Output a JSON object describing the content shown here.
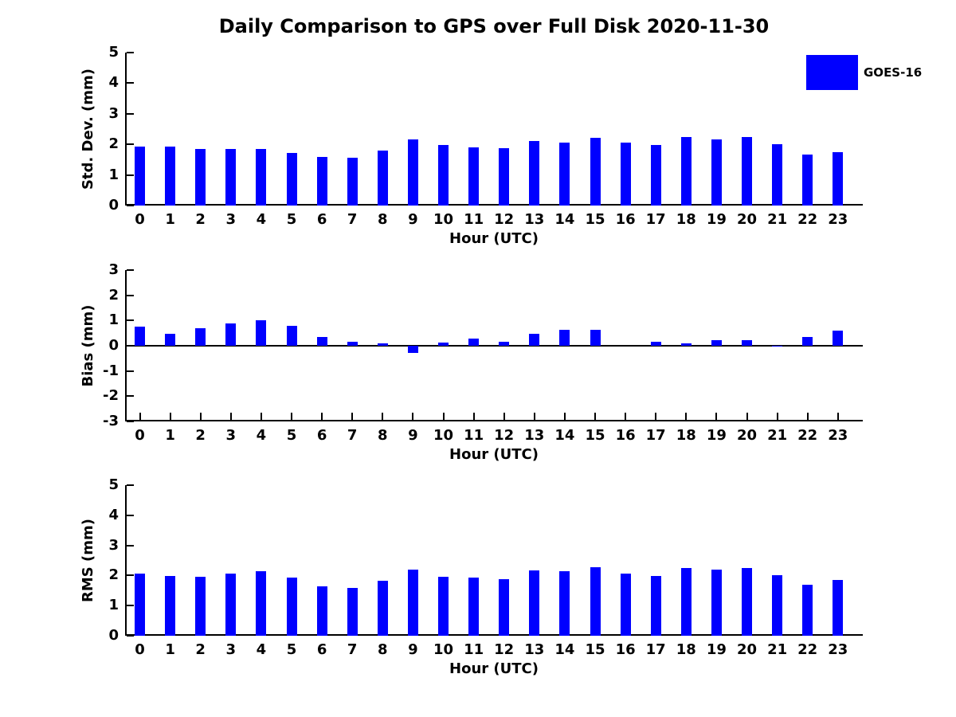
{
  "title": "Daily Comparison to GPS over Full Disk 2020-11-30",
  "legend": {
    "label": "GOES-16",
    "swatch_color": "#0000FF"
  },
  "colors": {
    "bar": "#0000FF",
    "axis": "#000000",
    "text": "#000000",
    "background": "#FFFFFF"
  },
  "chart_data": [
    {
      "id": "stddev",
      "type": "bar",
      "ylabel": "Std. Dev. (mm)",
      "xlabel": "Hour (UTC)",
      "ylim": [
        0,
        5
      ],
      "yticks": [
        0,
        1,
        2,
        3,
        4,
        5
      ],
      "grid": false,
      "legend_position": "top-right",
      "categories": [
        "0",
        "1",
        "2",
        "3",
        "4",
        "5",
        "6",
        "7",
        "8",
        "9",
        "10",
        "11",
        "12",
        "13",
        "14",
        "15",
        "16",
        "17",
        "18",
        "19",
        "20",
        "21",
        "22",
        "23"
      ],
      "series": [
        {
          "name": "GOES-16",
          "values": [
            1.93,
            1.93,
            1.84,
            1.86,
            1.86,
            1.73,
            1.58,
            1.55,
            1.8,
            2.17,
            1.97,
            1.91,
            1.88,
            2.12,
            2.07,
            2.22,
            2.06,
            1.98,
            2.24,
            2.17,
            2.24,
            2.01,
            1.66,
            1.75
          ]
        }
      ]
    },
    {
      "id": "bias",
      "type": "bar",
      "ylabel": "Bias (mm)",
      "xlabel": "Hour (UTC)",
      "ylim": [
        -3,
        3
      ],
      "yticks": [
        -3,
        -2,
        -1,
        0,
        1,
        2,
        3
      ],
      "grid": false,
      "legend_position": "none",
      "categories": [
        "0",
        "1",
        "2",
        "3",
        "4",
        "5",
        "6",
        "7",
        "8",
        "9",
        "10",
        "11",
        "12",
        "13",
        "14",
        "15",
        "16",
        "17",
        "18",
        "19",
        "20",
        "21",
        "22",
        "23"
      ],
      "series": [
        {
          "name": "GOES-16",
          "values": [
            0.76,
            0.48,
            0.71,
            0.9,
            1.01,
            0.8,
            0.34,
            0.15,
            0.08,
            -0.27,
            0.14,
            0.3,
            0.17,
            0.46,
            0.63,
            0.62,
            0.0,
            0.17,
            0.11,
            0.23,
            0.22,
            -0.04,
            0.36,
            0.6
          ]
        }
      ]
    },
    {
      "id": "rms",
      "type": "bar",
      "ylabel": "RMS (mm)",
      "xlabel": "Hour (UTC)",
      "ylim": [
        0,
        5
      ],
      "yticks": [
        0,
        1,
        2,
        3,
        4,
        5
      ],
      "grid": false,
      "legend_position": "none",
      "categories": [
        "0",
        "1",
        "2",
        "3",
        "4",
        "5",
        "6",
        "7",
        "8",
        "9",
        "10",
        "11",
        "12",
        "13",
        "14",
        "15",
        "16",
        "17",
        "18",
        "19",
        "20",
        "21",
        "22",
        "23"
      ],
      "series": [
        {
          "name": "GOES-16",
          "values": [
            2.07,
            1.99,
            1.97,
            2.07,
            2.13,
            1.92,
            1.63,
            1.58,
            1.83,
            2.19,
            1.97,
            1.94,
            1.88,
            2.16,
            2.13,
            2.28,
            2.06,
            1.98,
            2.26,
            2.19,
            2.26,
            2.0,
            1.69,
            1.85
          ]
        }
      ]
    }
  ]
}
